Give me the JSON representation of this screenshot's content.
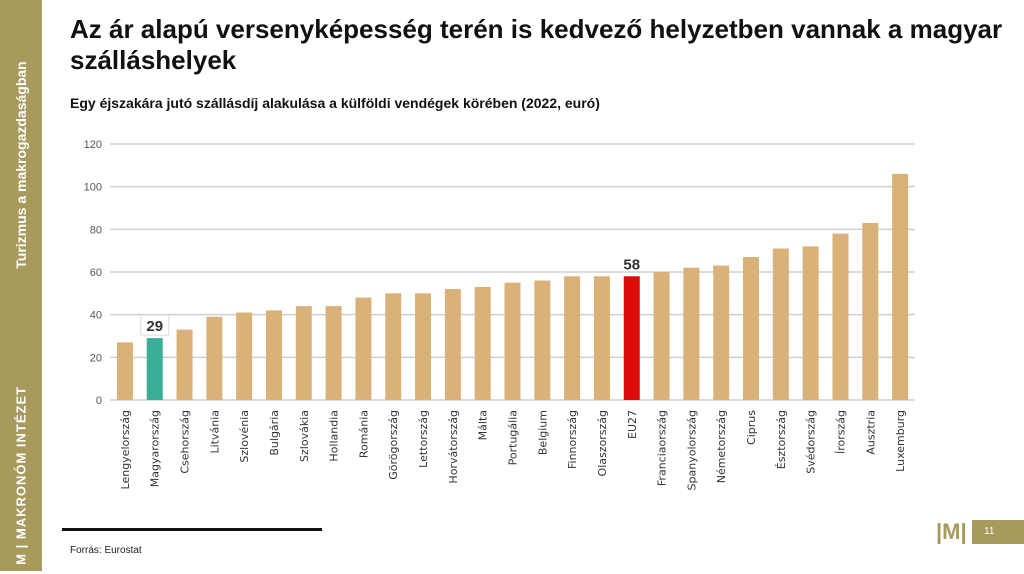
{
  "sidebar": {
    "section": "Turizmus a makrogazdaságban",
    "logo": "| M | MAKRONÓM INTÉZET"
  },
  "header": {
    "title": "Az ár alapú versenyképesség terén is kedvező helyzetben vannak a magyar szálláshelyek"
  },
  "footer": {
    "source": "Forrás: Eurostat",
    "logo": "|M|",
    "page": "11"
  },
  "colors": {
    "default": "#d9b27a",
    "highlight_hu": "#3aae96",
    "highlight_eu": "#dd0a0a",
    "sidebar": "#a8995c"
  },
  "chart_data": {
    "type": "bar",
    "title": "Egy éjszakára jutó szállásdíj alakulása a külföldi vendégek körében (2022, euró)",
    "xlabel": "",
    "ylabel": "",
    "ylim": [
      0,
      120
    ],
    "yticks": [
      0,
      20,
      40,
      60,
      80,
      100,
      120
    ],
    "grid": true,
    "categories": [
      "Lengyelország",
      "Magyarország",
      "Csehország",
      "Litvánia",
      "Szlovénia",
      "Bulgária",
      "Szlovákia",
      "Hollandia",
      "Románia",
      "Görögország",
      "Lettország",
      "Horvátország",
      "Málta",
      "Portugália",
      "Belgium",
      "Finnország",
      "Olaszország",
      "EU27",
      "Franciaország",
      "Spanyolország",
      "Németország",
      "Ciprus",
      "Észtország",
      "Svédország",
      "Írország",
      "Ausztria",
      "Luxemburg"
    ],
    "values": [
      27,
      29,
      33,
      39,
      41,
      42,
      44,
      44,
      48,
      50,
      50,
      52,
      53,
      55,
      56,
      58,
      58,
      58,
      60,
      62,
      63,
      67,
      71,
      72,
      78,
      83,
      106
    ],
    "data_labels": {
      "Magyarország": "29",
      "EU27": "58"
    }
  }
}
